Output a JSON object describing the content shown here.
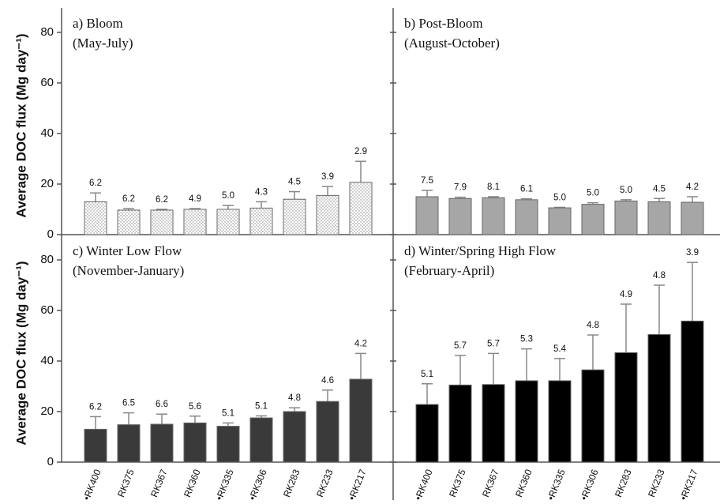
{
  "chart_data": [
    {
      "type": "bar",
      "title": "a) Bloom",
      "subtitle": "(May-July)",
      "ylabel": "Average DOC flux (Mg day⁻¹)",
      "values": [
        13,
        9.7,
        9.7,
        10,
        10,
        10.5,
        14,
        15.5,
        20.7
      ],
      "errors": [
        3.5,
        0.6,
        0.3,
        0.3,
        1.5,
        2.5,
        3,
        3.5,
        8.3
      ],
      "bar_labels": [
        "6.2",
        "6.2",
        "6.2",
        "4.9",
        "5.0",
        "4.3",
        "4.5",
        "3.9",
        "2.9"
      ],
      "color": "#ffffff",
      "pattern": "dots",
      "ylim": [
        0,
        80
      ],
      "yticks": [
        0,
        20,
        40,
        60,
        80
      ]
    },
    {
      "type": "bar",
      "title": "b) Post-Bloom",
      "subtitle": "(August-October)",
      "values": [
        15,
        14.3,
        14.6,
        13.8,
        10.6,
        12,
        13.3,
        13,
        12.8
      ],
      "errors": [
        2.5,
        0.5,
        0.4,
        0.4,
        0.2,
        0.6,
        0.5,
        1.3,
        2.2
      ],
      "bar_labels": [
        "7.5",
        "7.9",
        "8.1",
        "6.1",
        "5.0",
        "5.0",
        "5.0",
        "4.5",
        "4.2"
      ],
      "color": "#a6a6a6",
      "ylim": [
        0,
        80
      ]
    },
    {
      "type": "bar",
      "title": "c) Winter Low Flow",
      "subtitle": "(November-January)",
      "ylabel": "Average DOC flux (Mg day⁻¹)",
      "categories": [
        "•RK400",
        "RK375",
        "RK367",
        "RK360",
        "•RK335",
        "•RK306",
        "RK283",
        "RK233",
        "•RK217"
      ],
      "values": [
        13,
        14.8,
        15,
        15.5,
        14.2,
        17.5,
        20,
        24,
        32.8
      ],
      "errors": [
        5,
        4.7,
        4,
        2.7,
        1.3,
        0.8,
        1.5,
        4.5,
        10.2
      ],
      "bar_labels": [
        "6.2",
        "6.5",
        "6.6",
        "5.6",
        "5.1",
        "5.1",
        "4.8",
        "4.6",
        "4.2"
      ],
      "color": "#3a3a3a",
      "ylim": [
        0,
        80
      ],
      "yticks": [
        0,
        20,
        40,
        60,
        80
      ]
    },
    {
      "type": "bar",
      "title": "d) Winter/Spring High Flow",
      "subtitle": "(February-April)",
      "categories": [
        "•RK400",
        "RK375",
        "RK367",
        "RK360",
        "•RK335",
        "•RK306",
        "RK283",
        "RK233",
        "•RK217"
      ],
      "values": [
        22.8,
        30.5,
        30.7,
        32.2,
        32.2,
        36.5,
        43.3,
        50.5,
        55.8
      ],
      "errors": [
        8.2,
        11.7,
        12.3,
        12.6,
        8.8,
        13.8,
        19.2,
        19.5,
        23.2
      ],
      "bar_labels": [
        "5.1",
        "5.7",
        "5.7",
        "5.3",
        "5.4",
        "4.8",
        "4.9",
        "4.8",
        "3.9"
      ],
      "color": "#000000",
      "ylim": [
        0,
        80
      ]
    }
  ]
}
